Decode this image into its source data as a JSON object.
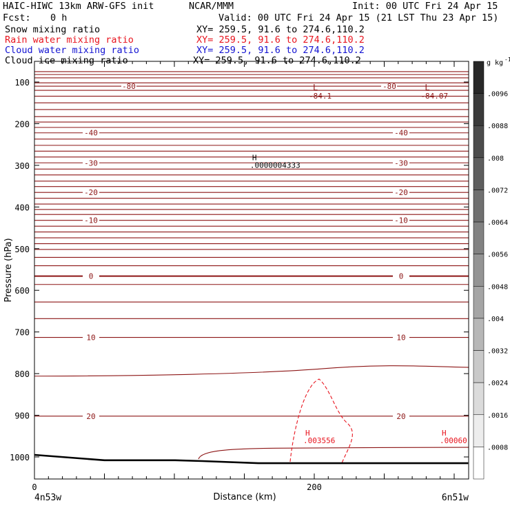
{
  "header": {
    "title": "HAIC-HIWC 13km ARW-GFS init",
    "org": "NCAR/MMM",
    "init": "Init: 00 UTC Fri 24 Apr 15",
    "fcst_label": "Fcst:",
    "fcst_value": "0 h",
    "valid": "Valid: 00 UTC Fri 24 Apr 15 (21 LST Thu 23 Apr 15)"
  },
  "fields": [
    {
      "name": "Snow mixing ratio",
      "xy": "XY= 259.5, 91.6 to 274.6,110.2",
      "color": "#000000"
    },
    {
      "name": "Rain water mixing ratio",
      "xy": "XY= 259.5, 91.6 to 274.6,110.2",
      "color": "#e8141e"
    },
    {
      "name": "Cloud water mixing ratio",
      "xy": "XY= 259.5, 91.6 to 274.6,110.2",
      "color": "#1414d2"
    },
    {
      "name": "Cloud ice mixing ratio",
      "xy": "XY= 259.5, 91.6 to 274.6,110.2",
      "color": "#000000"
    }
  ],
  "chart_data": {
    "type": "cross-section contour",
    "xlabel": "Distance (km)",
    "ylabel": "Pressure (hPa)",
    "xlim": [
      0,
      310
    ],
    "ylim": [
      1050,
      70
    ],
    "x_ticks": [
      0,
      200
    ],
    "y_ticks": [
      100,
      200,
      300,
      400,
      500,
      600,
      700,
      800,
      900,
      1000
    ],
    "x_endpoints": {
      "left": "4n53w",
      "right": "6n51w"
    },
    "temperature_contours": {
      "color": "#8c1414",
      "unit": "C",
      "levels": [
        {
          "value": -80,
          "p": 110
        },
        {
          "value": -40,
          "p": 222
        },
        {
          "value": -30,
          "p": 294
        },
        {
          "value": -20,
          "p": 365
        },
        {
          "value": -10,
          "p": 432
        },
        {
          "value": 0,
          "p": 566
        },
        {
          "value": 10,
          "p": 713
        },
        {
          "value": 20,
          "p": 902
        }
      ],
      "other_contour_levels_p": [
        75,
        82,
        90,
        102,
        120,
        134,
        150,
        166,
        183,
        196,
        209,
        237,
        252,
        266,
        280,
        309,
        323,
        338,
        351,
        379,
        393,
        406,
        418,
        446,
        460,
        474,
        488,
        502,
        521,
        541,
        586,
        628,
        668
      ],
      "lows": [
        {
          "label": "L",
          "value": "-84.1",
          "x": 200,
          "p": 95
        },
        {
          "label": "L",
          "value": "-84.07",
          "x": 280,
          "p": 95
        }
      ],
      "highs": [
        {
          "label": "H",
          "value": ".0000004333",
          "x": 131,
          "p": 303
        }
      ]
    },
    "rain_water": {
      "color": "#e8141e",
      "maxima": [
        {
          "label": "H",
          "value": ".003556",
          "x": 195,
          "p": 955
        },
        {
          "label": "H",
          "value": ".00060",
          "x": 295,
          "p": 955
        }
      ]
    },
    "terrain": [
      [
        0,
        995
      ],
      [
        50,
        1008
      ],
      [
        100,
        1008
      ],
      [
        120,
        1010
      ],
      [
        160,
        1015
      ],
      [
        310,
        1015
      ]
    ],
    "colorbar": {
      "unit": "g kg",
      "unit_exp": "-1",
      "labels": [
        ".0096",
        ".0088",
        ".008",
        ".0072",
        ".0064",
        ".0056",
        ".0048",
        ".004",
        ".0032",
        ".0024",
        ".0016",
        ".0008"
      ]
    }
  }
}
